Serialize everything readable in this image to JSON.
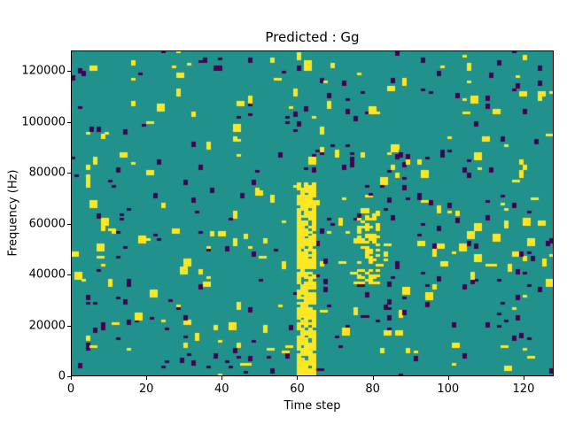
{
  "figure": {
    "title": "Predicted : Gg",
    "xlabel": "Time step",
    "ylabel": "Frequency (Hz)"
  },
  "chart_data": {
    "type": "heatmap",
    "title": "Predicted : Gg",
    "xlabel": "Time step",
    "ylabel": "Frequency (Hz)",
    "x_range": [
      0,
      128
    ],
    "y_range": [
      0,
      128000
    ],
    "xticks": [
      0,
      20,
      40,
      60,
      80,
      100,
      120
    ],
    "yticks": [
      0,
      20000,
      40000,
      60000,
      80000,
      100000,
      120000
    ],
    "grid_cols": 128,
    "grid_rows": 128,
    "colormap": "viridis",
    "colors": {
      "mid": "#21918c",
      "high": "#fde725",
      "low": "#440154",
      "axes": "#000000",
      "page": "#ffffff"
    },
    "legend": false,
    "description": "Sparse ternary spectrogram-like map on a teal background with scattered yellow (high) and dark-purple (low) cells; a dense yellow vertical band spans time steps ~60-65 from 0 up to ~75 kHz, with a secondary yellow cluster near steps ~76-82 between ~36-66 kHz and denser purple speckle to the right of the band.",
    "bands": [
      {
        "x0": 60,
        "x1": 65,
        "y0": 0,
        "y1": 76,
        "fill": 0.82
      },
      {
        "x0": 76,
        "x1": 82,
        "y0": 36,
        "y1": 66,
        "fill": 0.38
      }
    ],
    "scatter": {
      "seed": 1337,
      "yellow_density": 0.012,
      "purple_density": 0.012,
      "regions": [
        {
          "x0": 64,
          "x1": 96,
          "y0": 16,
          "y1": 92,
          "yellow_mult": 1.3,
          "purple_mult": 2.2
        },
        {
          "x0": 36,
          "x1": 60,
          "y0": 28,
          "y1": 82,
          "yellow_mult": 1.7,
          "purple_mult": 1.5
        },
        {
          "x0": 96,
          "x1": 128,
          "y0": 24,
          "y1": 72,
          "yellow_mult": 1.4,
          "purple_mult": 1.6
        },
        {
          "x0": 0,
          "x1": 12,
          "y0": 40,
          "y1": 128,
          "yellow_mult": 1.5,
          "purple_mult": 1.2
        }
      ]
    }
  }
}
